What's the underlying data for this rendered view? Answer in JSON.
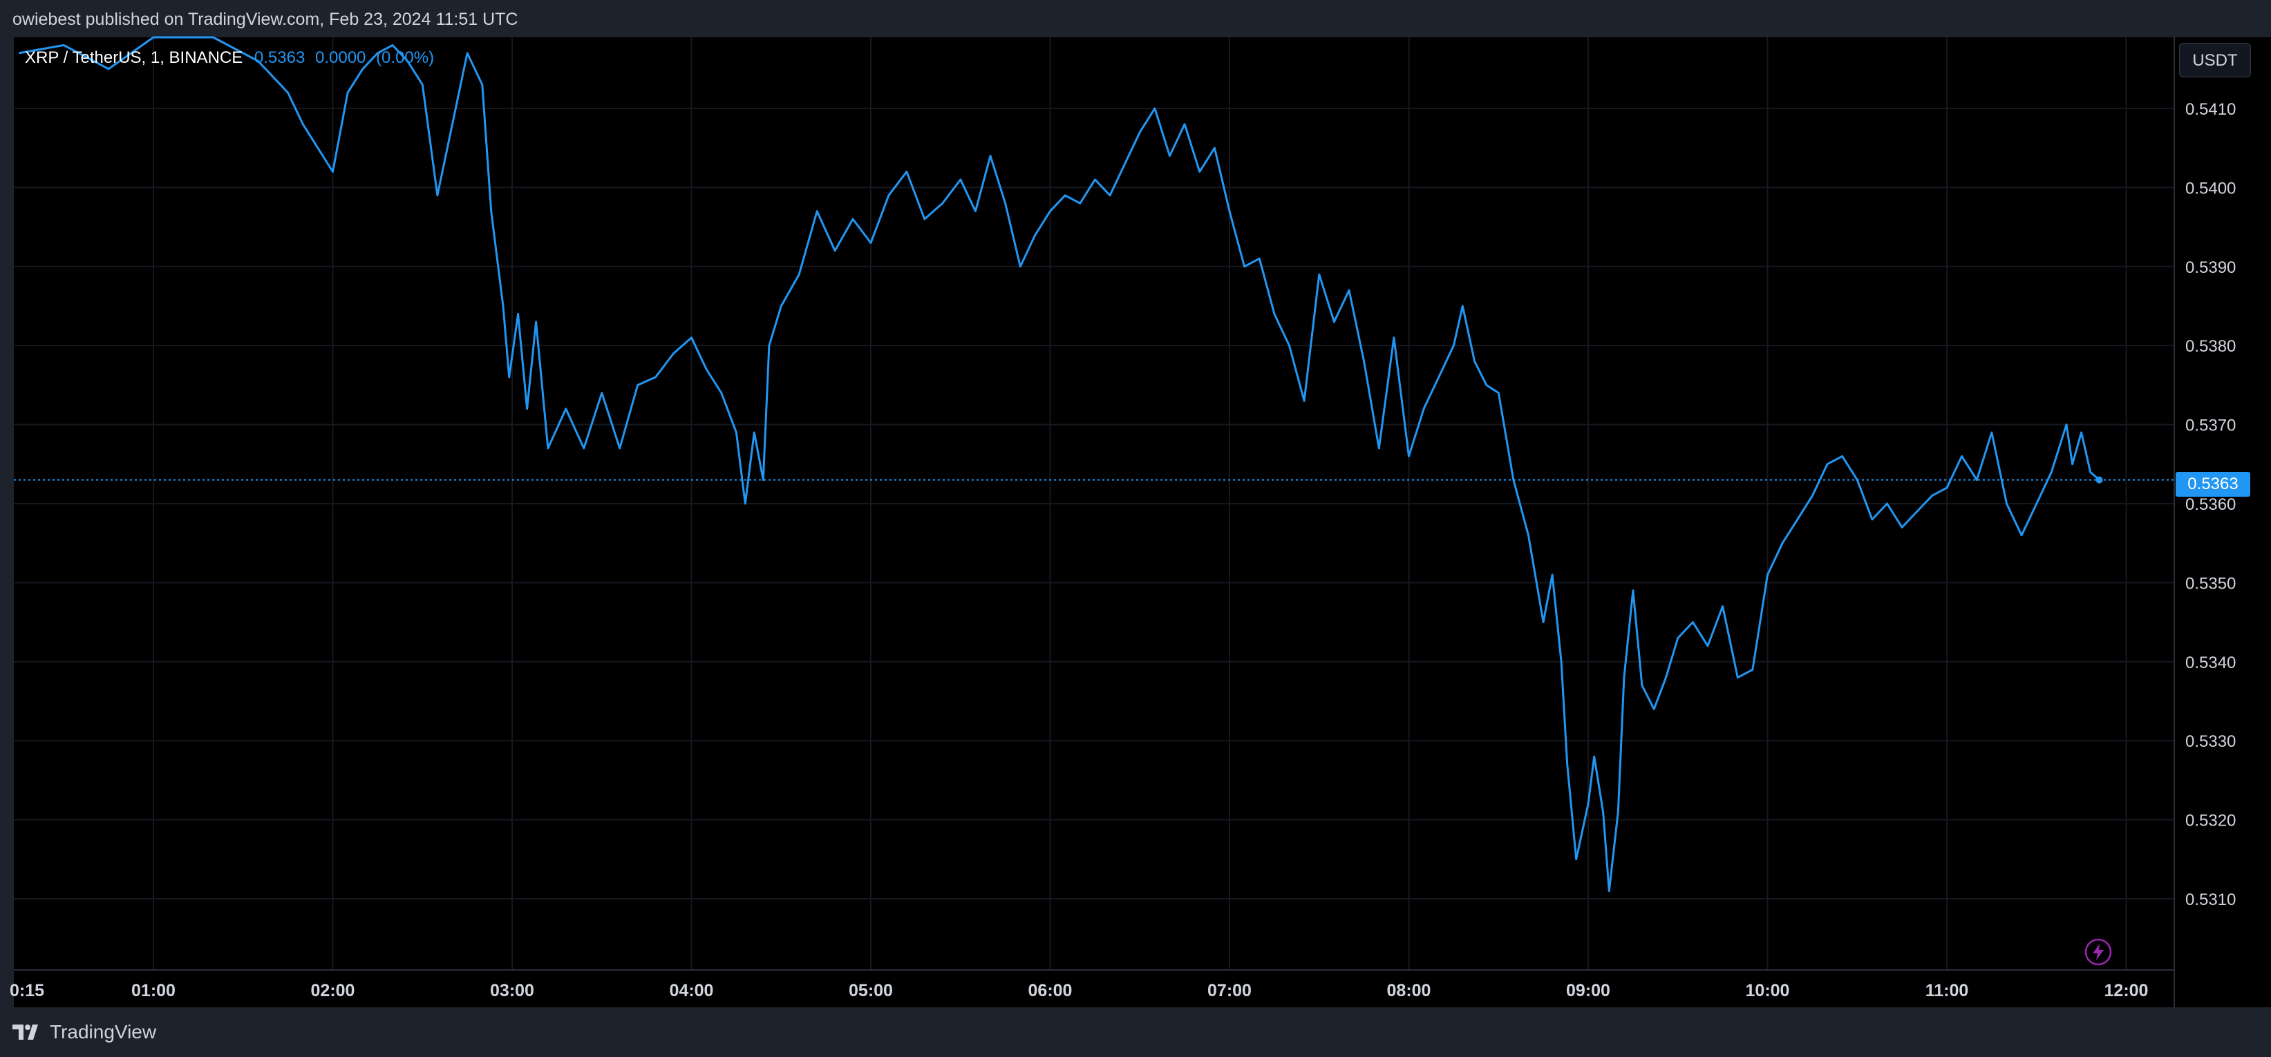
{
  "header": {
    "publish_text": "owiebest published on TradingView.com, Feb 23, 2024 11:51 UTC"
  },
  "legend": {
    "symbol": "XRP / TetherUS, 1, BINANCE",
    "last": "0.5363",
    "change": "0.0000",
    "change_pct": "(0.00%)"
  },
  "currency_button": "USDT",
  "last_price_label": "0.5363",
  "footer": {
    "brand": "TradingView"
  },
  "icons": {
    "brand": "tradingview-logo-icon",
    "quick_action": "lightning-icon"
  },
  "colors": {
    "line": "#2196f3",
    "background": "#000000",
    "grid": "#1a1d24",
    "axis_text": "#d1d4dc",
    "price_tag": "#2196f3",
    "lightning": "#9c27b0"
  },
  "chart_data": {
    "type": "line",
    "title": "",
    "xlabel": "",
    "ylabel": "",
    "x_start": "00:15",
    "x_end": "11:51",
    "x_ticks": [
      "0:15",
      "01:00",
      "02:00",
      "03:00",
      "04:00",
      "05:00",
      "06:00",
      "07:00",
      "08:00",
      "09:00",
      "10:00",
      "11:00",
      "12:00"
    ],
    "y_ticks": [
      "0.5410",
      "0.5400",
      "0.5390",
      "0.5380",
      "0.5370",
      "0.5360",
      "0.5350",
      "0.5340",
      "0.5330",
      "0.5320",
      "0.5310"
    ],
    "ylim": [
      0.5301,
      0.5419
    ],
    "y_scale": "linear",
    "grid": true,
    "last_price": 0.5363,
    "series": [
      {
        "points": [
          [
            "00:15",
            0.5417
          ],
          [
            "00:30",
            0.5418
          ],
          [
            "00:45",
            0.5415
          ],
          [
            "01:00",
            0.5419
          ],
          [
            "01:20",
            0.542
          ],
          [
            "01:35",
            0.5416
          ],
          [
            "01:45",
            0.5412
          ],
          [
            "01:50",
            0.5408
          ],
          [
            "01:55",
            0.5405
          ],
          [
            "02:00",
            0.5402
          ],
          [
            "02:05",
            0.5412
          ],
          [
            "02:10",
            0.5415
          ],
          [
            "02:15",
            0.5417
          ],
          [
            "02:20",
            0.5418
          ],
          [
            "02:25",
            0.5416
          ],
          [
            "02:30",
            0.5413
          ],
          [
            "02:35",
            0.5399
          ],
          [
            "02:40",
            0.5408
          ],
          [
            "02:45",
            0.5417
          ],
          [
            "02:50",
            0.5413
          ],
          [
            "02:53",
            0.5397
          ],
          [
            "02:57",
            0.5385
          ],
          [
            "02:59",
            0.5376
          ],
          [
            "03:02",
            0.5384
          ],
          [
            "03:05",
            0.5372
          ],
          [
            "03:08",
            0.5383
          ],
          [
            "03:12",
            0.5367
          ],
          [
            "03:18",
            0.5372
          ],
          [
            "03:24",
            0.5367
          ],
          [
            "03:30",
            0.5374
          ],
          [
            "03:36",
            0.5367
          ],
          [
            "03:42",
            0.5375
          ],
          [
            "03:48",
            0.5376
          ],
          [
            "03:54",
            0.5379
          ],
          [
            "04:00",
            0.5381
          ],
          [
            "04:05",
            0.5377
          ],
          [
            "04:10",
            0.5374
          ],
          [
            "04:15",
            0.5369
          ],
          [
            "04:18",
            0.536
          ],
          [
            "04:21",
            0.5369
          ],
          [
            "04:24",
            0.5363
          ],
          [
            "04:26",
            0.538
          ],
          [
            "04:30",
            0.5385
          ],
          [
            "04:36",
            0.5389
          ],
          [
            "04:42",
            0.5397
          ],
          [
            "04:48",
            0.5392
          ],
          [
            "04:54",
            0.5396
          ],
          [
            "05:00",
            0.5393
          ],
          [
            "05:06",
            0.5399
          ],
          [
            "05:12",
            0.5402
          ],
          [
            "05:18",
            0.5396
          ],
          [
            "05:24",
            0.5398
          ],
          [
            "05:30",
            0.5401
          ],
          [
            "05:35",
            0.5397
          ],
          [
            "05:40",
            0.5404
          ],
          [
            "05:45",
            0.5398
          ],
          [
            "05:50",
            0.539
          ],
          [
            "05:55",
            0.5394
          ],
          [
            "06:00",
            0.5397
          ],
          [
            "06:05",
            0.5399
          ],
          [
            "06:10",
            0.5398
          ],
          [
            "06:15",
            0.5401
          ],
          [
            "06:20",
            0.5399
          ],
          [
            "06:25",
            0.5403
          ],
          [
            "06:30",
            0.5407
          ],
          [
            "06:35",
            0.541
          ],
          [
            "06:40",
            0.5404
          ],
          [
            "06:45",
            0.5408
          ],
          [
            "06:50",
            0.5402
          ],
          [
            "06:55",
            0.5405
          ],
          [
            "07:00",
            0.5397
          ],
          [
            "07:05",
            0.539
          ],
          [
            "07:10",
            0.5391
          ],
          [
            "07:15",
            0.5384
          ],
          [
            "07:20",
            0.538
          ],
          [
            "07:25",
            0.5373
          ],
          [
            "07:30",
            0.5389
          ],
          [
            "07:35",
            0.5383
          ],
          [
            "07:40",
            0.5387
          ],
          [
            "07:45",
            0.5378
          ],
          [
            "07:50",
            0.5367
          ],
          [
            "07:55",
            0.5381
          ],
          [
            "08:00",
            0.5366
          ],
          [
            "08:05",
            0.5372
          ],
          [
            "08:10",
            0.5376
          ],
          [
            "08:15",
            0.538
          ],
          [
            "08:18",
            0.5385
          ],
          [
            "08:22",
            0.5378
          ],
          [
            "08:26",
            0.5375
          ],
          [
            "08:30",
            0.5374
          ],
          [
            "08:35",
            0.5363
          ],
          [
            "08:40",
            0.5356
          ],
          [
            "08:45",
            0.5345
          ],
          [
            "08:48",
            0.5351
          ],
          [
            "08:51",
            0.534
          ],
          [
            "08:53",
            0.5327
          ],
          [
            "08:56",
            0.5315
          ],
          [
            "09:00",
            0.5322
          ],
          [
            "09:02",
            0.5328
          ],
          [
            "09:05",
            0.5321
          ],
          [
            "09:07",
            0.5311
          ],
          [
            "09:10",
            0.5321
          ],
          [
            "09:12",
            0.5338
          ],
          [
            "09:15",
            0.5349
          ],
          [
            "09:18",
            0.5337
          ],
          [
            "09:22",
            0.5334
          ],
          [
            "09:26",
            0.5338
          ],
          [
            "09:30",
            0.5343
          ],
          [
            "09:35",
            0.5345
          ],
          [
            "09:40",
            0.5342
          ],
          [
            "09:45",
            0.5347
          ],
          [
            "09:50",
            0.5338
          ],
          [
            "09:55",
            0.5339
          ],
          [
            "10:00",
            0.5351
          ],
          [
            "10:05",
            0.5355
          ],
          [
            "10:10",
            0.5358
          ],
          [
            "10:15",
            0.5361
          ],
          [
            "10:20",
            0.5365
          ],
          [
            "10:25",
            0.5366
          ],
          [
            "10:30",
            0.5363
          ],
          [
            "10:35",
            0.5358
          ],
          [
            "10:40",
            0.536
          ],
          [
            "10:45",
            0.5357
          ],
          [
            "10:50",
            0.5359
          ],
          [
            "10:55",
            0.5361
          ],
          [
            "11:00",
            0.5362
          ],
          [
            "11:05",
            0.5366
          ],
          [
            "11:10",
            0.5363
          ],
          [
            "11:15",
            0.5369
          ],
          [
            "11:20",
            0.536
          ],
          [
            "11:25",
            0.5356
          ],
          [
            "11:30",
            0.536
          ],
          [
            "11:35",
            0.5364
          ],
          [
            "11:40",
            0.537
          ],
          [
            "11:42",
            0.5365
          ],
          [
            "11:45",
            0.5369
          ],
          [
            "11:48",
            0.5364
          ],
          [
            "11:51",
            0.5363
          ]
        ]
      }
    ]
  }
}
